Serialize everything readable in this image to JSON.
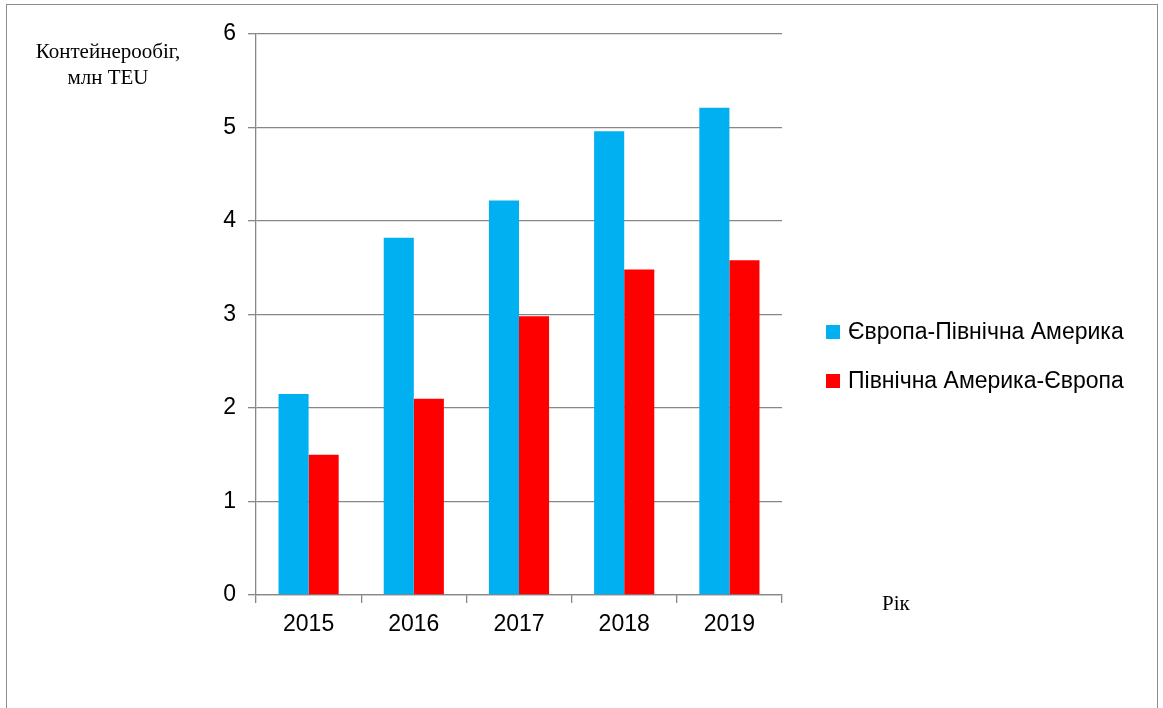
{
  "chart_data": {
    "type": "bar",
    "categories": [
      "2015",
      "2016",
      "2017",
      "2018",
      "2019"
    ],
    "series": [
      {
        "name": "Європа-Північна Америка",
        "color": "#00b0f0",
        "values": [
          2.15,
          3.82,
          4.22,
          4.96,
          5.21
        ]
      },
      {
        "name": "Північна Америка-Європа",
        "color": "#ff0000",
        "values": [
          1.5,
          2.1,
          2.98,
          3.48,
          3.58
        ]
      }
    ],
    "ylabel": "Контейнерообіг, млн TEU",
    "xlabel": "Рік",
    "ylim": [
      0,
      6
    ],
    "yticks": [
      0,
      1,
      2,
      3,
      4,
      5,
      6
    ],
    "grid": "y",
    "legend": "right"
  }
}
